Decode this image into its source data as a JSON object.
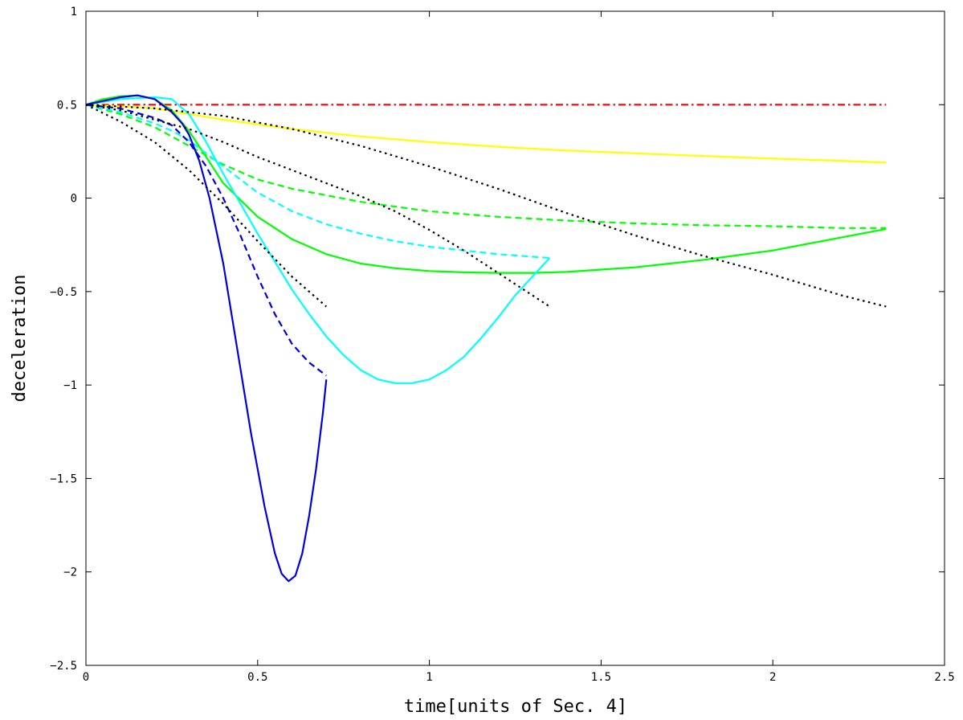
{
  "chart_data": {
    "type": "line",
    "title": "",
    "xlabel": "time[units of Sec. 4]",
    "ylabel": "deceleration",
    "xlim": [
      0,
      2.5
    ],
    "ylim": [
      -2.5,
      1
    ],
    "xticks": [
      0,
      0.5,
      1,
      1.5,
      2,
      2.5
    ],
    "xtick_labels": [
      "0",
      "0.5",
      "1",
      "1.5",
      "2",
      "2.5"
    ],
    "yticks": [
      1,
      0.5,
      0,
      -0.5,
      -1,
      -1.5,
      -2,
      -2.5
    ],
    "ytick_labels": [
      "1",
      "0.5",
      "0",
      "−0.5",
      "−1",
      "−1.5",
      "−2",
      "−2.5"
    ],
    "grid": false,
    "legend": "none",
    "series": [
      {
        "color": "#ff0000",
        "style": "dashdot",
        "x": [
          0,
          2.33
        ],
        "y": [
          0.5,
          0.5
        ]
      },
      {
        "color": "#ffff00",
        "style": "solid",
        "x": [
          0,
          0.2,
          0.4,
          0.6,
          0.8,
          1.0,
          1.2,
          1.4,
          1.6,
          1.8,
          2.0,
          2.2,
          2.33
        ],
        "y": [
          0.5,
          0.48,
          0.42,
          0.37,
          0.33,
          0.3,
          0.275,
          0.255,
          0.24,
          0.225,
          0.212,
          0.2,
          0.19
        ]
      },
      {
        "color": "#00ff00",
        "style": "dashed",
        "x": [
          0,
          0.1,
          0.2,
          0.3,
          0.4,
          0.5,
          0.6,
          0.8,
          1.0,
          1.2,
          1.4,
          1.6,
          1.8,
          2.0,
          2.2,
          2.33
        ],
        "y": [
          0.5,
          0.45,
          0.38,
          0.28,
          0.18,
          0.1,
          0.05,
          -0.02,
          -0.07,
          -0.1,
          -0.12,
          -0.135,
          -0.145,
          -0.15,
          -0.16,
          -0.16
        ]
      },
      {
        "color": "#00ff00",
        "style": "solid",
        "x": [
          0,
          0.05,
          0.1,
          0.15,
          0.2,
          0.25,
          0.3,
          0.35,
          0.4,
          0.5,
          0.6,
          0.7,
          0.8,
          0.9,
          1.0,
          1.1,
          1.2,
          1.3,
          1.4,
          1.6,
          1.8,
          2.0,
          2.2,
          2.33
        ],
        "y": [
          0.5,
          0.53,
          0.545,
          0.55,
          0.53,
          0.47,
          0.36,
          0.22,
          0.08,
          -0.1,
          -0.22,
          -0.3,
          -0.35,
          -0.375,
          -0.39,
          -0.397,
          -0.4,
          -0.4,
          -0.395,
          -0.37,
          -0.33,
          -0.28,
          -0.21,
          -0.165
        ]
      },
      {
        "color": "#00ffff",
        "style": "dashed",
        "x": [
          0,
          0.1,
          0.2,
          0.25,
          0.3,
          0.35,
          0.4,
          0.5,
          0.6,
          0.7,
          0.8,
          0.9,
          1.0,
          1.1,
          1.2,
          1.35
        ],
        "y": [
          0.5,
          0.46,
          0.4,
          0.36,
          0.31,
          0.24,
          0.17,
          0.03,
          -0.07,
          -0.14,
          -0.19,
          -0.23,
          -0.26,
          -0.28,
          -0.3,
          -0.32
        ]
      },
      {
        "color": "#00ffff",
        "style": "solid",
        "x": [
          0,
          0.1,
          0.2,
          0.25,
          0.3,
          0.35,
          0.4,
          0.45,
          0.5,
          0.55,
          0.6,
          0.65,
          0.7,
          0.75,
          0.8,
          0.85,
          0.9,
          0.95,
          1.0,
          1.05,
          1.1,
          1.15,
          1.2,
          1.25,
          1.3,
          1.35
        ],
        "y": [
          0.5,
          0.53,
          0.54,
          0.53,
          0.45,
          0.3,
          0.13,
          -0.03,
          -0.19,
          -0.34,
          -0.49,
          -0.62,
          -0.74,
          -0.84,
          -0.92,
          -0.97,
          -0.99,
          -0.99,
          -0.97,
          -0.92,
          -0.85,
          -0.75,
          -0.64,
          -0.52,
          -0.42,
          -0.32
        ]
      },
      {
        "color": "#0000dd",
        "style": "dashed",
        "x": [
          0,
          0.1,
          0.2,
          0.25,
          0.3,
          0.35,
          0.4,
          0.45,
          0.5,
          0.55,
          0.6,
          0.65,
          0.7
        ],
        "y": [
          0.5,
          0.48,
          0.43,
          0.39,
          0.3,
          0.17,
          0.0,
          -0.2,
          -0.42,
          -0.62,
          -0.78,
          -0.88,
          -0.95
        ]
      },
      {
        "color": "#0000dd",
        "style": "solid",
        "x": [
          0,
          0.1,
          0.15,
          0.2,
          0.25,
          0.28,
          0.3,
          0.33,
          0.36,
          0.4,
          0.44,
          0.48,
          0.52,
          0.55,
          0.57,
          0.59,
          0.61,
          0.63,
          0.65,
          0.67,
          0.69,
          0.7
        ],
        "y": [
          0.5,
          0.54,
          0.55,
          0.53,
          0.46,
          0.4,
          0.34,
          0.2,
          0.0,
          -0.35,
          -0.8,
          -1.25,
          -1.65,
          -1.9,
          -2.01,
          -2.05,
          -2.02,
          -1.9,
          -1.7,
          -1.45,
          -1.15,
          -0.97
        ]
      },
      {
        "color": "#000000",
        "style": "dotted",
        "x": [
          0,
          0.1,
          0.2,
          0.3,
          0.4,
          0.5,
          0.6,
          0.7
        ],
        "y": [
          0.5,
          0.41,
          0.3,
          0.15,
          -0.03,
          -0.23,
          -0.42,
          -0.58
        ]
      },
      {
        "color": "#000000",
        "style": "dotted",
        "x": [
          0,
          0.1,
          0.2,
          0.3,
          0.4,
          0.5,
          0.6,
          0.7,
          0.8,
          0.9,
          1.0,
          1.1,
          1.2,
          1.35
        ],
        "y": [
          0.5,
          0.47,
          0.42,
          0.37,
          0.3,
          0.22,
          0.15,
          0.08,
          0.01,
          -0.07,
          -0.17,
          -0.28,
          -0.4,
          -0.58
        ]
      },
      {
        "color": "#000000",
        "style": "dotted",
        "x": [
          0,
          0.2,
          0.4,
          0.6,
          0.8,
          1.0,
          1.2,
          1.4,
          1.6,
          1.8,
          2.0,
          2.2,
          2.33
        ],
        "y": [
          0.5,
          0.48,
          0.44,
          0.37,
          0.28,
          0.17,
          0.05,
          -0.08,
          -0.2,
          -0.31,
          -0.41,
          -0.52,
          -0.58
        ]
      }
    ]
  }
}
